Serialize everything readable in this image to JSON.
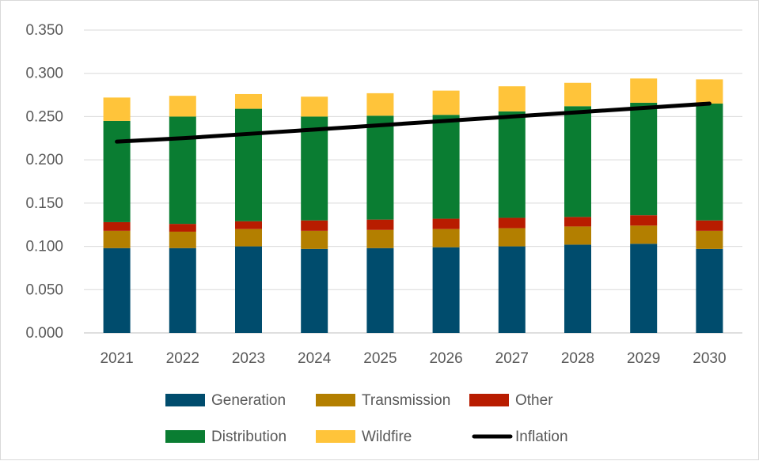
{
  "chart_data": {
    "type": "bar",
    "stacked": true,
    "title": "",
    "xlabel": "",
    "ylabel": "",
    "categories": [
      "2021",
      "2022",
      "2023",
      "2024",
      "2025",
      "2026",
      "2027",
      "2028",
      "2029",
      "2030"
    ],
    "ylim": [
      0,
      0.35
    ],
    "yticks": [
      0,
      0.05,
      0.1,
      0.15,
      0.2,
      0.25,
      0.3,
      0.35
    ],
    "ytick_labels": [
      "0.000",
      "0.050",
      "0.100",
      "0.150",
      "0.200",
      "0.250",
      "0.300",
      "0.350"
    ],
    "grid": true,
    "legend_position": "bottom",
    "series": [
      {
        "name": "Generation",
        "kind": "bar",
        "color": "#004c6d",
        "values": [
          0.098,
          0.098,
          0.1,
          0.097,
          0.098,
          0.099,
          0.1,
          0.102,
          0.103,
          0.097
        ]
      },
      {
        "name": "Transmission",
        "kind": "bar",
        "color": "#b37f00",
        "values": [
          0.02,
          0.019,
          0.02,
          0.021,
          0.021,
          0.021,
          0.021,
          0.021,
          0.021,
          0.021
        ]
      },
      {
        "name": "Other",
        "kind": "bar",
        "color": "#b81c00",
        "values": [
          0.01,
          0.009,
          0.009,
          0.012,
          0.012,
          0.012,
          0.012,
          0.011,
          0.012,
          0.012
        ]
      },
      {
        "name": "Distribution",
        "kind": "bar",
        "color": "#0a7d32",
        "values": [
          0.117,
          0.124,
          0.13,
          0.12,
          0.12,
          0.12,
          0.123,
          0.128,
          0.13,
          0.135
        ]
      },
      {
        "name": "Wildfire",
        "kind": "bar",
        "color": "#ffc43a",
        "values": [
          0.027,
          0.024,
          0.017,
          0.023,
          0.026,
          0.028,
          0.029,
          0.027,
          0.028,
          0.028
        ]
      },
      {
        "name": "Inflation",
        "kind": "line",
        "color": "#000000",
        "values": [
          0.221,
          0.225,
          0.23,
          0.235,
          0.24,
          0.245,
          0.25,
          0.255,
          0.26,
          0.265
        ]
      }
    ],
    "legend": {
      "rows": [
        [
          "Generation",
          "Transmission",
          "Other"
        ],
        [
          "Distribution",
          "Wildfire",
          "Inflation"
        ]
      ]
    }
  }
}
